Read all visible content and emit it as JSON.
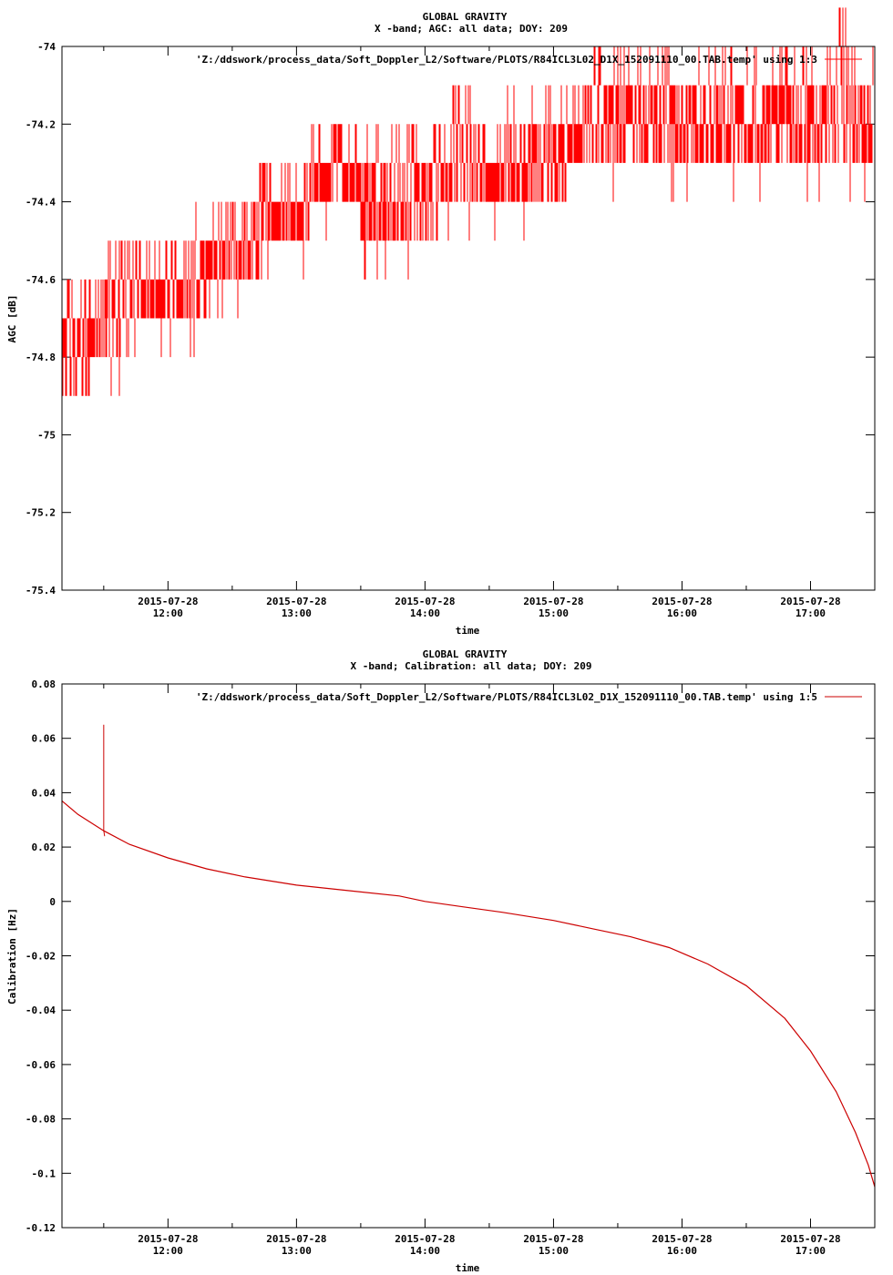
{
  "chart_data": [
    {
      "type": "line",
      "title": "GLOBAL GRAVITY",
      "subtitle": "X -band; AGC: all data; DOY: 209",
      "xlabel": "time",
      "ylabel": "AGC [dB]",
      "legend": "'Z:/ddswork/process_data/Soft_Doppler_L2/Software/PLOTS/R84ICL3L02_D1X_152091110_00.TAB.temp' using 1:3",
      "legend_position": "top-right",
      "color": "#ff0000",
      "grid": false,
      "xlim": [
        11.175,
        17.5
      ],
      "ylim": [
        -75.4,
        -74
      ],
      "yticks": [
        -74,
        -74.2,
        -74.4,
        -74.6,
        -74.8,
        -75,
        -75.2,
        -75.4
      ],
      "yticklabels": [
        "-74",
        "-74.2",
        "-74.4",
        "-74.6",
        "-74.8",
        "-75",
        "-75.2",
        "-75.4"
      ],
      "xticks": [
        12,
        13,
        14,
        15,
        16,
        17
      ],
      "xticklabels_date": [
        "2015-07-28",
        "2015-07-28",
        "2015-07-28",
        "2015-07-28",
        "2015-07-28",
        "2015-07-28"
      ],
      "xticklabels_time": [
        "12:00",
        "13:00",
        "14:00",
        "15:00",
        "16:00",
        "17:00"
      ],
      "series": [
        {
          "x": [
            11.18,
            11.3,
            11.4,
            11.5,
            11.6,
            11.7,
            11.8,
            11.9,
            12.0,
            12.1,
            12.2,
            12.3,
            12.4,
            12.5,
            12.6,
            12.7,
            12.8,
            12.9,
            13.0,
            13.1,
            13.2,
            13.3,
            13.4,
            13.5,
            13.6,
            13.7,
            13.8,
            13.9,
            14.0,
            14.1,
            14.2,
            14.3,
            14.4,
            14.5,
            14.6,
            14.7,
            14.8,
            14.9,
            15.0,
            15.1,
            15.2,
            15.3,
            15.4,
            15.5,
            15.6,
            15.7,
            15.8,
            15.9,
            16.0,
            16.1,
            16.2,
            16.3,
            16.4,
            16.5,
            16.6,
            16.7,
            16.8,
            16.9,
            17.0,
            17.1,
            17.2,
            17.3,
            17.4,
            17.49
          ],
          "low": [
            -74.9,
            -74.9,
            -74.8,
            -74.8,
            -74.8,
            -74.7,
            -74.7,
            -74.7,
            -74.7,
            -74.7,
            -74.7,
            -74.6,
            -74.6,
            -74.6,
            -74.6,
            -74.5,
            -74.5,
            -74.5,
            -74.5,
            -74.4,
            -74.4,
            -74.4,
            -74.4,
            -74.5,
            -74.5,
            -74.5,
            -74.5,
            -74.5,
            -74.5,
            -74.4,
            -74.4,
            -74.4,
            -74.4,
            -74.4,
            -74.4,
            -74.4,
            -74.4,
            -74.4,
            -74.4,
            -74.3,
            -74.3,
            -74.3,
            -74.3,
            -74.3,
            -74.3,
            -74.3,
            -74.3,
            -74.3,
            -74.3,
            -74.3,
            -74.3,
            -74.3,
            -74.3,
            -74.3,
            -74.3,
            -74.3,
            -74.3,
            -74.3,
            -74.3,
            -74.3,
            -74.3,
            -74.3,
            -74.3,
            -74.3
          ],
          "high": [
            -74.7,
            -74.7,
            -74.7,
            -74.6,
            -74.6,
            -74.6,
            -74.6,
            -74.6,
            -74.6,
            -74.6,
            -74.5,
            -74.5,
            -74.5,
            -74.5,
            -74.5,
            -74.4,
            -74.4,
            -74.4,
            -74.4,
            -74.3,
            -74.3,
            -74.3,
            -74.3,
            -74.3,
            -74.3,
            -74.3,
            -74.3,
            -74.3,
            -74.3,
            -74.3,
            -74.2,
            -74.2,
            -74.3,
            -74.3,
            -74.2,
            -74.2,
            -74.2,
            -74.2,
            -74.2,
            -74.2,
            -74.2,
            -74.1,
            -74.1,
            -74.1,
            -74.1,
            -74.1,
            -74.1,
            -74.1,
            -74.1,
            -74.1,
            -74.1,
            -74.1,
            -74.1,
            -74.1,
            -74.1,
            -74.1,
            -74.1,
            -74.1,
            -74.1,
            -74.1,
            -74.0,
            -74.1,
            -74.1,
            -74.1
          ]
        }
      ]
    },
    {
      "type": "line",
      "title": "GLOBAL GRAVITY",
      "subtitle": "X -band; Calibration: all data; DOY: 209",
      "xlabel": "time",
      "ylabel": "Calibration [Hz]",
      "legend": "'Z:/ddswork/process_data/Soft_Doppler_L2/Software/PLOTS/R84ICL3L02_D1X_152091110_00.TAB.temp' using 1:5",
      "legend_position": "top-right",
      "color": "#cc0000",
      "grid": false,
      "xlim": [
        11.175,
        17.5
      ],
      "ylim": [
        -0.12,
        0.08
      ],
      "yticks": [
        0.08,
        0.06,
        0.04,
        0.02,
        0,
        -0.02,
        -0.04,
        -0.06,
        -0.08,
        -0.1,
        -0.12
      ],
      "yticklabels": [
        "0.08",
        "0.06",
        "0.04",
        "0.02",
        "0",
        "-0.02",
        "-0.04",
        "-0.06",
        "-0.08",
        "-0.1",
        "-0.12"
      ],
      "xticks": [
        12,
        13,
        14,
        15,
        16,
        17
      ],
      "xticklabels_date": [
        "2015-07-28",
        "2015-07-28",
        "2015-07-28",
        "2015-07-28",
        "2015-07-28",
        "2015-07-28"
      ],
      "xticklabels_time": [
        "12:00",
        "13:00",
        "14:00",
        "15:00",
        "16:00",
        "17:00"
      ],
      "spike": {
        "x": 11.5,
        "y": 0.065
      },
      "series": [
        {
          "x": [
            11.175,
            11.3,
            11.5,
            11.7,
            12.0,
            12.3,
            12.6,
            13.0,
            13.4,
            13.8,
            14.0,
            14.3,
            14.6,
            15.0,
            15.3,
            15.6,
            15.9,
            16.2,
            16.5,
            16.8,
            17.0,
            17.2,
            17.35,
            17.45,
            17.5
          ],
          "y": [
            0.037,
            0.032,
            0.026,
            0.021,
            0.016,
            0.012,
            0.009,
            0.006,
            0.004,
            0.002,
            0.0,
            -0.002,
            -0.004,
            -0.007,
            -0.01,
            -0.013,
            -0.017,
            -0.023,
            -0.031,
            -0.043,
            -0.055,
            -0.07,
            -0.085,
            -0.097,
            -0.105
          ]
        }
      ]
    }
  ]
}
